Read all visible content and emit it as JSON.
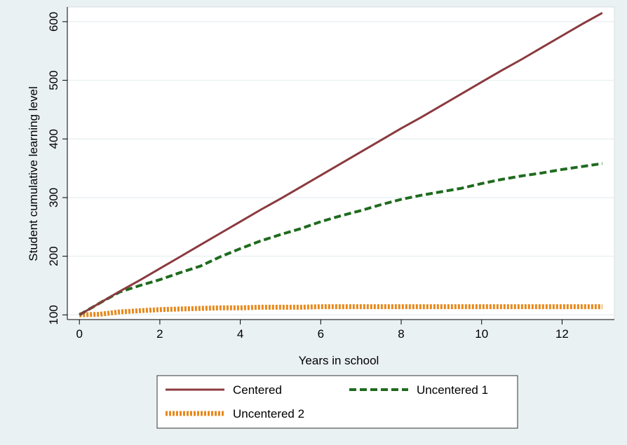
{
  "chart_data": {
    "type": "line",
    "title": "",
    "xlabel": "Years in school",
    "ylabel": "Student cumulative learning level",
    "xlim": [
      -0.3,
      13.3
    ],
    "ylim": [
      92,
      625
    ],
    "x_ticks": [
      0,
      2,
      4,
      6,
      8,
      10,
      12
    ],
    "y_ticks": [
      100,
      200,
      300,
      400,
      500,
      600
    ],
    "grid": "horizontal",
    "legend_position": "bottom",
    "x": [
      0,
      0.5,
      1,
      1.5,
      2,
      2.5,
      3,
      3.5,
      4,
      4.5,
      5,
      5.5,
      6,
      6.5,
      7,
      7.5,
      8,
      8.5,
      9,
      9.5,
      10,
      10.5,
      11,
      11.5,
      12,
      12.5,
      13
    ],
    "series": [
      {
        "name": "Centered",
        "color": "#8b3a3f",
        "style": "solid",
        "values": [
          100,
          120,
          140,
          159,
          179,
          199,
          219,
          239,
          259,
          279,
          298,
          318,
          338,
          358,
          378,
          398,
          418,
          437,
          457,
          477,
          497,
          517,
          536,
          556,
          576,
          596,
          615
        ]
      },
      {
        "name": "Uncentered 1",
        "color": "#1e6b1e",
        "style": "dashed",
        "values": [
          100,
          120,
          139,
          150,
          160,
          172,
          183,
          199,
          213,
          226,
          237,
          247,
          259,
          269,
          278,
          288,
          297,
          304,
          310,
          316,
          324,
          331,
          337,
          342,
          348,
          353,
          358
        ]
      },
      {
        "name": "Uncentered 2",
        "color": "#e8891c",
        "style": "dotted",
        "values": [
          100,
          101,
          105,
          107,
          109,
          110,
          111,
          112,
          112,
          113,
          113,
          113,
          114,
          114,
          114,
          114,
          114,
          114,
          114,
          114,
          114,
          114,
          114,
          114,
          114,
          114,
          114
        ]
      }
    ]
  }
}
